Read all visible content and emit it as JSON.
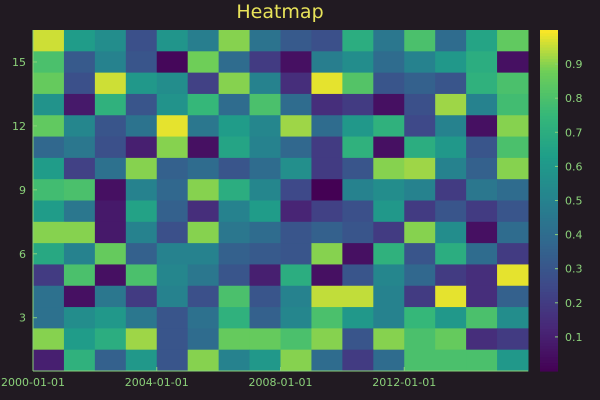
{
  "chart_data": {
    "type": "heatmap",
    "title": "Heatmap",
    "colormap": "viridis",
    "clim": [
      0,
      1
    ],
    "x_tick_labels": [
      "2000-01-01",
      "2004-01-01",
      "2008-01-01",
      "2012-01-01"
    ],
    "x_tick_positions": [
      2000,
      2004,
      2008,
      2012
    ],
    "x_columns": [
      2000,
      2001,
      2002,
      2003,
      2004,
      2005,
      2006,
      2007,
      2008,
      2009,
      2010,
      2011,
      2012,
      2013,
      2014,
      2015
    ],
    "y_tick_labels": [
      "3",
      "6",
      "9",
      "12",
      "15"
    ],
    "y_tick_values": [
      3,
      6,
      9,
      12,
      15
    ],
    "y_range": [
      1,
      16
    ],
    "colorbar_tick_labels": [
      "0.1",
      "0.2",
      "0.3",
      "0.4",
      "0.5",
      "0.6",
      "0.7",
      "0.8",
      "0.9"
    ],
    "colorbar_tick_values": [
      0.1,
      0.2,
      0.3,
      0.4,
      0.5,
      0.6,
      0.7,
      0.8,
      0.9
    ],
    "values": [
      [
        0.96,
        0.62,
        0.55,
        0.28,
        0.59,
        0.48,
        0.9,
        0.43,
        0.32,
        0.28,
        0.7,
        0.45,
        0.8,
        0.4,
        0.66,
        0.85
      ],
      [
        0.8,
        0.32,
        0.5,
        0.3,
        0.02,
        0.88,
        0.4,
        0.2,
        0.05,
        0.48,
        0.55,
        0.4,
        0.5,
        0.6,
        0.7,
        0.05
      ],
      [
        0.86,
        0.28,
        0.96,
        0.6,
        0.55,
        0.22,
        0.9,
        0.5,
        0.15,
        0.98,
        0.82,
        0.3,
        0.35,
        0.3,
        0.72,
        0.8
      ],
      [
        0.58,
        0.08,
        0.72,
        0.3,
        0.58,
        0.75,
        0.4,
        0.8,
        0.4,
        0.15,
        0.2,
        0.05,
        0.28,
        0.92,
        0.5,
        0.78
      ],
      [
        0.85,
        0.52,
        0.3,
        0.43,
        0.98,
        0.45,
        0.62,
        0.52,
        0.92,
        0.4,
        0.6,
        0.72,
        0.25,
        0.5,
        0.05,
        0.9
      ],
      [
        0.38,
        0.45,
        0.28,
        0.1,
        0.9,
        0.05,
        0.66,
        0.5,
        0.38,
        0.2,
        0.72,
        0.05,
        0.7,
        0.6,
        0.3,
        0.8
      ],
      [
        0.62,
        0.22,
        0.42,
        0.9,
        0.35,
        0.4,
        0.3,
        0.4,
        0.56,
        0.2,
        0.3,
        0.9,
        0.92,
        0.5,
        0.35,
        0.9
      ],
      [
        0.78,
        0.8,
        0.05,
        0.5,
        0.38,
        0.9,
        0.7,
        0.52,
        0.25,
        0.0,
        0.5,
        0.55,
        0.5,
        0.2,
        0.45,
        0.4
      ],
      [
        0.62,
        0.45,
        0.08,
        0.65,
        0.35,
        0.15,
        0.5,
        0.62,
        0.12,
        0.22,
        0.28,
        0.6,
        0.2,
        0.3,
        0.2,
        0.3
      ],
      [
        0.9,
        0.9,
        0.08,
        0.5,
        0.28,
        0.9,
        0.45,
        0.4,
        0.3,
        0.35,
        0.3,
        0.2,
        0.9,
        0.55,
        0.05,
        0.4
      ],
      [
        0.68,
        0.5,
        0.86,
        0.35,
        0.5,
        0.5,
        0.35,
        0.32,
        0.3,
        0.9,
        0.05,
        0.72,
        0.3,
        0.7,
        0.4,
        0.2
      ],
      [
        0.2,
        0.8,
        0.05,
        0.8,
        0.52,
        0.45,
        0.3,
        0.1,
        0.7,
        0.05,
        0.3,
        0.52,
        0.38,
        0.2,
        0.15,
        0.98
      ],
      [
        0.42,
        0.05,
        0.45,
        0.2,
        0.5,
        0.28,
        0.8,
        0.3,
        0.5,
        0.95,
        0.95,
        0.5,
        0.2,
        0.98,
        0.15,
        0.35
      ],
      [
        0.42,
        0.55,
        0.6,
        0.45,
        0.3,
        0.42,
        0.72,
        0.35,
        0.52,
        0.8,
        0.6,
        0.5,
        0.75,
        0.6,
        0.8,
        0.55
      ],
      [
        0.9,
        0.62,
        0.7,
        0.92,
        0.3,
        0.4,
        0.86,
        0.86,
        0.8,
        0.9,
        0.3,
        0.9,
        0.8,
        0.86,
        0.15,
        0.2
      ],
      [
        0.1,
        0.72,
        0.35,
        0.6,
        0.3,
        0.9,
        0.5,
        0.6,
        0.9,
        0.4,
        0.2,
        0.4,
        0.8,
        0.8,
        0.8,
        0.6
      ]
    ]
  }
}
